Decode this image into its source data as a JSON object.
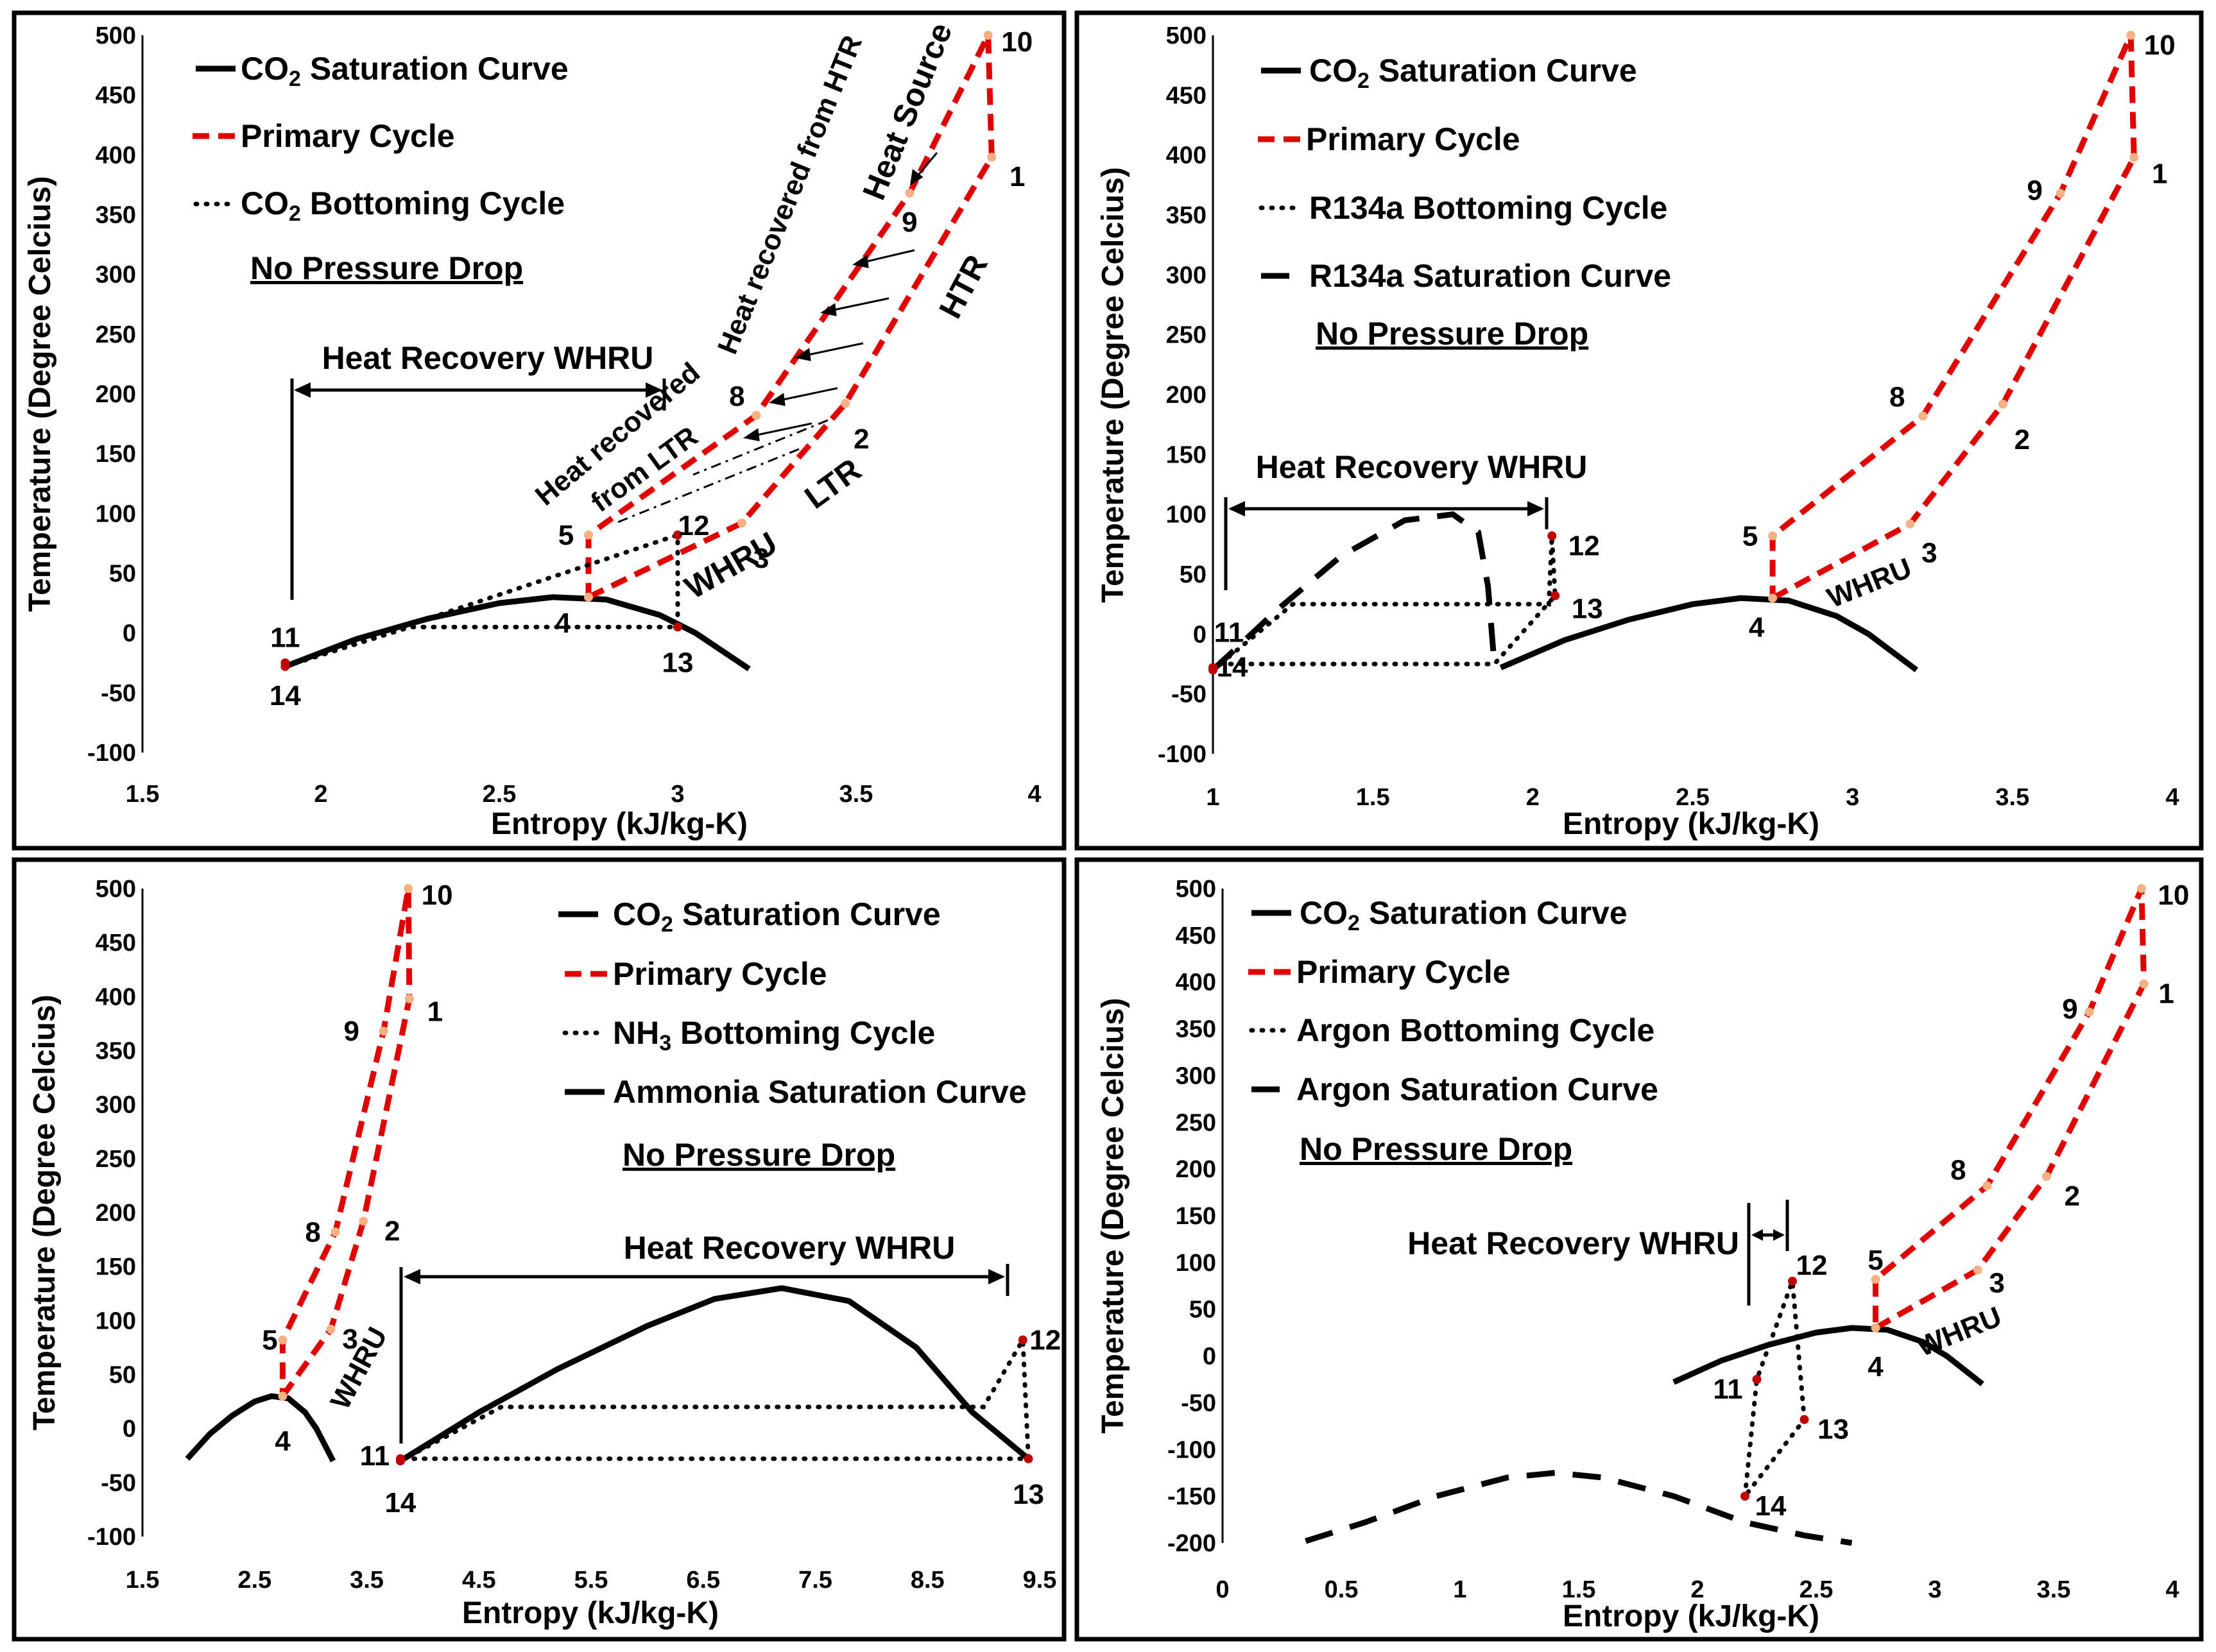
{
  "colors": {
    "primary": "#e00000",
    "marker_primary": "#f4b183",
    "marker_bottom": "#c00000",
    "ink": "#000000"
  },
  "chart_data": [
    {
      "type": "line",
      "xlabel": "Entropy (kJ/kg-K)",
      "ylabel": "Temperature (Degree Celcius)",
      "xlim": [
        1.5,
        4
      ],
      "ylim": [
        -100,
        500
      ],
      "xticks": [
        "1.5",
        "2",
        "2.5",
        "3",
        "3.5",
        "4"
      ],
      "yticks": [
        "500",
        "450",
        "400",
        "350",
        "300",
        "250",
        "200",
        "150",
        "100",
        "50",
        "0",
        "-50",
        "-100"
      ],
      "legend": [
        "CO",
        "2",
        " Saturation Curve",
        "Primary Cycle",
        "CO",
        "2",
        " Bottoming Cycle"
      ],
      "note": "No Pressure Drop",
      "annotations": [
        "Heat Recovery WHRU",
        "Heat Source",
        "Heat recovered from HTR",
        "HTR",
        "Heat recovered",
        "from LTR",
        "LTR",
        "WHRU"
      ],
      "series": [
        {
          "name": "CO2 Saturation Curve",
          "style": "sat-solid",
          "x": [
            1.9,
            2.1,
            2.3,
            2.5,
            2.65,
            2.8,
            2.95,
            3.05,
            3.2
          ],
          "y": [
            -28,
            -5,
            12,
            25,
            30,
            28,
            15,
            0,
            -30
          ]
        },
        {
          "name": "Primary Cycle",
          "style": "primary",
          "x": [
            2.75,
            3.18,
            3.47,
            3.88,
            3.87,
            3.65,
            3.22,
            2.75,
            2.75
          ],
          "y": [
            30,
            92,
            192,
            398,
            500,
            368,
            182,
            82,
            30
          ]
        },
        {
          "name": "CO2 Bottoming Cycle",
          "style": "bottom",
          "x": [
            1.9,
            2.25,
            3.0,
            3.0,
            1.9
          ],
          "y": [
            -28,
            5,
            5,
            82,
            -28
          ]
        }
      ],
      "points": [
        {
          "label": "1",
          "x": 3.88,
          "y": 398
        },
        {
          "label": "2",
          "x": 3.47,
          "y": 192
        },
        {
          "label": "3",
          "x": 3.18,
          "y": 92
        },
        {
          "label": "4",
          "x": 2.75,
          "y": 30
        },
        {
          "label": "5",
          "x": 2.75,
          "y": 82
        },
        {
          "label": "8",
          "x": 3.22,
          "y": 182
        },
        {
          "label": "9",
          "x": 3.65,
          "y": 368
        },
        {
          "label": "10",
          "x": 3.87,
          "y": 500
        },
        {
          "label": "11",
          "x": 1.9,
          "y": -25
        },
        {
          "label": "12",
          "x": 3.0,
          "y": 82
        },
        {
          "label": "13",
          "x": 3.0,
          "y": 5
        },
        {
          "label": "14",
          "x": 1.9,
          "y": -28
        }
      ]
    },
    {
      "type": "line",
      "xlabel": "Entropy (kJ/kg-K)",
      "ylabel": "Temperature (Degree Celcius)",
      "xlim": [
        1,
        4
      ],
      "ylim": [
        -100,
        500
      ],
      "xticks": [
        "1",
        "1.5",
        "2",
        "2.5",
        "3",
        "3.5",
        "4"
      ],
      "yticks": [
        "500",
        "450",
        "400",
        "350",
        "300",
        "250",
        "200",
        "150",
        "100",
        "50",
        "0",
        "-50",
        "-100"
      ],
      "legend": [
        "CO",
        "2",
        " Saturation Curve",
        "Primary Cycle",
        "R134a Bottoming Cycle",
        "R134a Saturation Curve"
      ],
      "note": "No Pressure Drop",
      "annotations": [
        "Heat Recovery WHRU",
        "WHRU"
      ],
      "series": [
        {
          "name": "CO2 Saturation Curve",
          "style": "sat-solid",
          "x": [
            1.9,
            2.1,
            2.3,
            2.5,
            2.65,
            2.8,
            2.95,
            3.05,
            3.2
          ],
          "y": [
            -28,
            -5,
            12,
            25,
            30,
            28,
            15,
            0,
            -30
          ]
        },
        {
          "name": "R134a Saturation Curve",
          "style": "sat-dash",
          "x": [
            1.0,
            1.2,
            1.4,
            1.6,
            1.75,
            1.83,
            1.86,
            1.88
          ],
          "y": [
            -30,
            20,
            65,
            95,
            100,
            85,
            40,
            -25
          ]
        },
        {
          "name": "Primary Cycle",
          "style": "primary",
          "x": [
            2.75,
            3.18,
            3.47,
            3.88,
            3.87,
            3.65,
            3.22,
            2.75,
            2.75
          ],
          "y": [
            30,
            92,
            192,
            398,
            500,
            368,
            182,
            82,
            30
          ]
        },
        {
          "name": "R134a Bottoming Cycle",
          "style": "bottom",
          "x": [
            1.0,
            1.25,
            2.05,
            2.06,
            2.07,
            1.88,
            1.0
          ],
          "y": [
            -30,
            25,
            25,
            82,
            32,
            -25,
            -25
          ]
        }
      ],
      "points": [
        {
          "label": "1",
          "x": 3.88,
          "y": 398
        },
        {
          "label": "2",
          "x": 3.47,
          "y": 192
        },
        {
          "label": "3",
          "x": 3.18,
          "y": 92
        },
        {
          "label": "4",
          "x": 2.75,
          "y": 30
        },
        {
          "label": "5",
          "x": 2.75,
          "y": 82
        },
        {
          "label": "8",
          "x": 3.22,
          "y": 182
        },
        {
          "label": "9",
          "x": 3.65,
          "y": 368
        },
        {
          "label": "10",
          "x": 3.87,
          "y": 500
        },
        {
          "label": "11",
          "x": 1.0,
          "y": -28
        },
        {
          "label": "12",
          "x": 2.06,
          "y": 82
        },
        {
          "label": "13",
          "x": 2.07,
          "y": 32
        },
        {
          "label": "14",
          "x": 1.0,
          "y": -30
        }
      ]
    },
    {
      "type": "line",
      "xlabel": "Entropy (kJ/kg-K)",
      "ylabel": "Temperature (Degree Celcius)",
      "xlim": [
        1.5,
        9.5
      ],
      "ylim": [
        -100,
        500
      ],
      "xticks": [
        "1.5",
        "2.5",
        "3.5",
        "4.5",
        "5.5",
        "6.5",
        "7.5",
        "8.5",
        "9.5"
      ],
      "yticks": [
        "500",
        "450",
        "400",
        "350",
        "300",
        "250",
        "200",
        "150",
        "100",
        "50",
        "0",
        "-50",
        "-100"
      ],
      "legend": [
        "CO",
        "2",
        " Saturation Curve",
        "Primary Cycle",
        "NH",
        "3",
        " Bottoming Cycle",
        "Ammonia Saturation Curve"
      ],
      "note": "No Pressure Drop",
      "annotations": [
        "Heat Recovery WHRU",
        "WHRU"
      ],
      "series": [
        {
          "name": "CO2 Saturation Curve",
          "style": "sat-solid",
          "x": [
            1.9,
            2.1,
            2.3,
            2.5,
            2.65,
            2.8,
            2.95,
            3.05,
            3.2
          ],
          "y": [
            -28,
            -5,
            12,
            25,
            30,
            28,
            15,
            0,
            -30
          ]
        },
        {
          "name": "Ammonia Saturation Curve",
          "style": "sat-solid",
          "x": [
            3.8,
            4.5,
            5.2,
            6.0,
            6.6,
            7.2,
            7.8,
            8.4,
            8.9,
            9.4
          ],
          "y": [
            -30,
            15,
            55,
            95,
            120,
            130,
            118,
            75,
            15,
            -28
          ]
        },
        {
          "name": "Primary Cycle",
          "style": "primary",
          "x": [
            2.75,
            3.18,
            3.47,
            3.88,
            3.87,
            3.65,
            3.22,
            2.75,
            2.75
          ],
          "y": [
            30,
            92,
            192,
            398,
            500,
            368,
            182,
            82,
            30
          ]
        },
        {
          "name": "NH3 Bottoming Cycle",
          "style": "bottom",
          "x": [
            3.8,
            4.7,
            9.0,
            9.35,
            9.4,
            3.8
          ],
          "y": [
            -30,
            20,
            20,
            82,
            -28,
            -28
          ]
        }
      ],
      "points": [
        {
          "label": "1",
          "x": 3.88,
          "y": 398
        },
        {
          "label": "2",
          "x": 3.47,
          "y": 192
        },
        {
          "label": "3",
          "x": 3.18,
          "y": 92
        },
        {
          "label": "4",
          "x": 2.75,
          "y": 30
        },
        {
          "label": "5",
          "x": 2.75,
          "y": 82
        },
        {
          "label": "8",
          "x": 3.22,
          "y": 182
        },
        {
          "label": "9",
          "x": 3.65,
          "y": 368
        },
        {
          "label": "10",
          "x": 3.87,
          "y": 500
        },
        {
          "label": "11",
          "x": 3.8,
          "y": -28
        },
        {
          "label": "12",
          "x": 9.35,
          "y": 82
        },
        {
          "label": "13",
          "x": 9.4,
          "y": -28
        },
        {
          "label": "14",
          "x": 3.8,
          "y": -30
        }
      ]
    },
    {
      "type": "line",
      "xlabel": "Entropy (kJ/kg-K)",
      "ylabel": "Temperature (Degree Celcius)",
      "xlim": [
        0,
        4
      ],
      "ylim": [
        -200,
        500
      ],
      "xticks": [
        "0",
        "0.5",
        "1",
        "1.5",
        "2",
        "2.5",
        "3",
        "3.5",
        "4"
      ],
      "yticks": [
        "500",
        "450",
        "400",
        "350",
        "300",
        "250",
        "200",
        "150",
        "100",
        "50",
        "0",
        "-50",
        "-100",
        "-150",
        "-200"
      ],
      "legend": [
        "CO",
        "2",
        " Saturation Curve",
        "Primary Cycle",
        "Argon Bottoming Cycle",
        "Argon Saturation Curve"
      ],
      "note": "No Pressure Drop",
      "annotations": [
        "Heat Recovery WHRU",
        "WHRU"
      ],
      "series": [
        {
          "name": "CO2 Saturation Curve",
          "style": "sat-solid",
          "x": [
            1.9,
            2.1,
            2.3,
            2.5,
            2.65,
            2.8,
            2.95,
            3.05,
            3.2
          ],
          "y": [
            -28,
            -5,
            12,
            25,
            30,
            28,
            15,
            0,
            -30
          ]
        },
        {
          "name": "Argon Saturation Curve",
          "style": "sat-dash",
          "x": [
            0.35,
            0.6,
            0.9,
            1.2,
            1.4,
            1.6,
            1.9,
            2.2,
            2.45,
            2.65
          ],
          "y": [
            -198,
            -178,
            -150,
            -130,
            -125,
            -130,
            -150,
            -178,
            -192,
            -200
          ]
        },
        {
          "name": "Argon Bottoming Cycle",
          "style": "bottom",
          "x": [
            2.2,
            2.25,
            2.4,
            2.45,
            2.2
          ],
          "y": [
            -150,
            -25,
            80,
            -68,
            -150
          ]
        }
      ],
      "primary": {
        "name": "Primary Cycle",
        "style": "primary",
        "x": [
          2.75,
          3.18,
          3.47,
          3.88,
          3.87,
          3.65,
          3.22,
          2.75,
          2.75
        ],
        "y": [
          30,
          92,
          192,
          398,
          500,
          368,
          182,
          82,
          30
        ]
      },
      "points": [
        {
          "label": "1",
          "x": 3.88,
          "y": 398
        },
        {
          "label": "2",
          "x": 3.47,
          "y": 192
        },
        {
          "label": "3",
          "x": 3.18,
          "y": 92
        },
        {
          "label": "4",
          "x": 2.75,
          "y": 30
        },
        {
          "label": "5",
          "x": 2.75,
          "y": 82
        },
        {
          "label": "8",
          "x": 3.22,
          "y": 182
        },
        {
          "label": "9",
          "x": 3.65,
          "y": 368
        },
        {
          "label": "10",
          "x": 3.87,
          "y": 500
        },
        {
          "label": "11",
          "x": 2.25,
          "y": -25
        },
        {
          "label": "12",
          "x": 2.4,
          "y": 80
        },
        {
          "label": "13",
          "x": 2.45,
          "y": -68
        },
        {
          "label": "14",
          "x": 2.2,
          "y": -150
        }
      ]
    }
  ]
}
